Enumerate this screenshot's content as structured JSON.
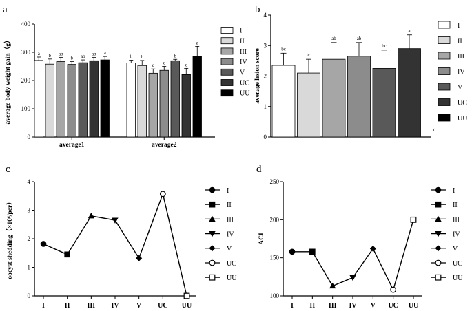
{
  "chart_data": [
    {
      "panel": "a",
      "type": "bar",
      "ylabel": "average body weight gain（g）",
      "ylim": [
        0,
        400
      ],
      "yticks": [
        0,
        100,
        200,
        300,
        400
      ],
      "categories": [
        "average1",
        "average2"
      ],
      "legend": [
        "I",
        "II",
        "III",
        "IV",
        "V",
        "UC",
        "UU"
      ],
      "legend_placement": "right",
      "colors": [
        "#ffffff",
        "#d9d9d9",
        "#a6a6a6",
        "#8c8c8c",
        "#595959",
        "#333333",
        "#000000"
      ],
      "series": [
        {
          "name": "I",
          "values": [
            271,
            262
          ],
          "errors": [
            12,
            10
          ],
          "labels": [
            "a",
            "b"
          ]
        },
        {
          "name": "II",
          "values": [
            258,
            253
          ],
          "errors": [
            18,
            18
          ],
          "labels": [
            "b",
            "b"
          ]
        },
        {
          "name": "III",
          "values": [
            267,
            226
          ],
          "errors": [
            15,
            15
          ],
          "labels": [
            "ab",
            "c"
          ]
        },
        {
          "name": "IV",
          "values": [
            257,
            236
          ],
          "errors": [
            10,
            14
          ],
          "labels": [
            "b",
            "c"
          ]
        },
        {
          "name": "V",
          "values": [
            263,
            270
          ],
          "errors": [
            10,
            5
          ],
          "labels": [
            "ab",
            "b"
          ]
        },
        {
          "name": "UC",
          "values": [
            270,
            221
          ],
          "errors": [
            12,
            22
          ],
          "labels": [
            "ab",
            "c"
          ]
        },
        {
          "name": "UU",
          "values": [
            273,
            286
          ],
          "errors": [
            12,
            35
          ],
          "labels": [
            "a",
            "a"
          ]
        }
      ]
    },
    {
      "panel": "b",
      "type": "bar",
      "ylabel": "average lesion score",
      "ylim": [
        0,
        4
      ],
      "yticks": [
        0,
        1,
        2,
        3,
        4
      ],
      "categories": [
        "I",
        "II",
        "III",
        "IV",
        "V",
        "UC",
        "UU"
      ],
      "legend": [
        "I",
        "II",
        "III",
        "IV",
        "V",
        "UC",
        "UU"
      ],
      "legend_placement": "right",
      "colors": [
        "#ffffff",
        "#d9d9d9",
        "#a6a6a6",
        "#8c8c8c",
        "#595959",
        "#333333",
        "#000000"
      ],
      "values": [
        2.35,
        2.1,
        2.55,
        2.65,
        2.25,
        2.9,
        0
      ],
      "errors": [
        0.4,
        0.45,
        0.55,
        0.45,
        0.6,
        0.45,
        0
      ],
      "labels": [
        "bc",
        "c",
        "ab",
        "ab",
        "bc",
        "a",
        "d"
      ]
    },
    {
      "panel": "c",
      "type": "line",
      "ylabel": "oocyst shedding（×10⁶/per）",
      "ylim": [
        0,
        4
      ],
      "yticks": [
        0,
        1,
        2,
        3,
        4
      ],
      "categories": [
        "I",
        "II",
        "III",
        "IV",
        "V",
        "UC",
        "UU"
      ],
      "values": [
        1.82,
        1.45,
        2.8,
        2.65,
        1.32,
        3.57,
        0
      ],
      "markers": [
        "circle",
        "square",
        "triangle-up",
        "triangle-down",
        "diamond",
        "circle-open",
        "square-open"
      ],
      "legend": [
        "I",
        "II",
        "III",
        "IV",
        "V",
        "UC",
        "UU"
      ],
      "legend_placement": "right"
    },
    {
      "panel": "d",
      "type": "line",
      "ylabel": "ACI",
      "ylim": [
        100,
        250
      ],
      "yticks": [
        100,
        150,
        200,
        250
      ],
      "categories": [
        "I",
        "II",
        "III",
        "IV",
        "V",
        "UC",
        "UU"
      ],
      "values": [
        158,
        158,
        113,
        124,
        162,
        108,
        200
      ],
      "markers": [
        "circle",
        "square",
        "triangle-up",
        "triangle-down",
        "diamond",
        "circle-open",
        "square-open"
      ],
      "legend": [
        "I",
        "II",
        "III",
        "IV",
        "V",
        "UC",
        "UU"
      ],
      "legend_placement": "right"
    }
  ]
}
